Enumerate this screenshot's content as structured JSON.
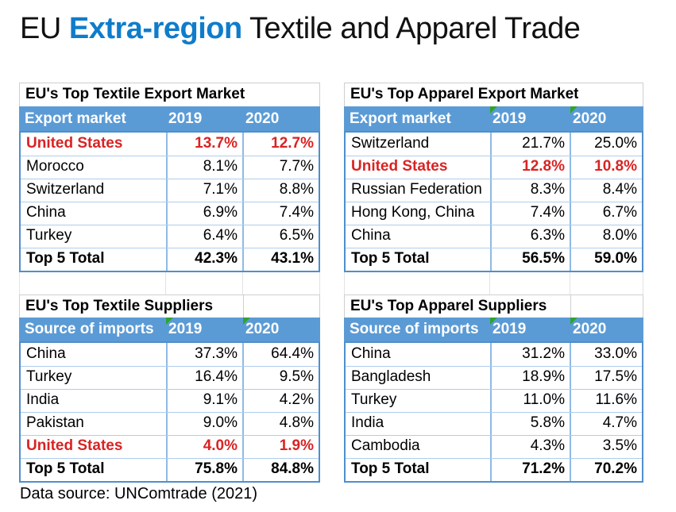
{
  "title": {
    "prefix": "EU ",
    "highlight": "Extra-region",
    "suffix": " Textile and Apparel Trade"
  },
  "footer": "Data source: UNComtrade (2021)",
  "colors": {
    "table_header_bg": "#5B9BD5",
    "table_header_text": "#FFFFFF",
    "highlight_red": "#D92323",
    "title_blue": "#0F7CCB",
    "flag_green": "#2EA42E",
    "grid_border_blue": "#8FBAE4",
    "outer_border_blue": "#4E8FCB",
    "faint_grid_gray": "#E3E3E3"
  },
  "chart_data": [
    {
      "type": "table",
      "title": "EU's Top Textile Export Market",
      "columns": [
        "Export market",
        "2019",
        "2020"
      ],
      "rows": [
        {
          "cells": [
            "United States",
            "13.7%",
            "12.7%"
          ],
          "style": "red"
        },
        {
          "cells": [
            "Morocco",
            "8.1%",
            "7.7%"
          ],
          "style": ""
        },
        {
          "cells": [
            "Switzerland",
            "7.1%",
            "8.8%"
          ],
          "style": ""
        },
        {
          "cells": [
            "China",
            "6.9%",
            "7.4%"
          ],
          "style": ""
        },
        {
          "cells": [
            "Turkey",
            "6.4%",
            "6.5%"
          ],
          "style": ""
        },
        {
          "cells": [
            "Top 5 Total",
            "42.3%",
            "43.1%"
          ],
          "style": "total"
        }
      ]
    },
    {
      "type": "table",
      "title": "EU's Top Apparel Export Market",
      "columns": [
        "Export market",
        "2019",
        "2020"
      ],
      "rows": [
        {
          "cells": [
            "Switzerland",
            "21.7%",
            "25.0%"
          ],
          "style": ""
        },
        {
          "cells": [
            "United States",
            "12.8%",
            "10.8%"
          ],
          "style": "red"
        },
        {
          "cells": [
            "Russian Federation",
            "8.3%",
            "8.4%"
          ],
          "style": ""
        },
        {
          "cells": [
            "Hong Kong, China",
            "7.4%",
            "6.7%"
          ],
          "style": ""
        },
        {
          "cells": [
            "China",
            "6.3%",
            "8.0%"
          ],
          "style": ""
        },
        {
          "cells": [
            "Top 5 Total",
            "56.5%",
            "59.0%"
          ],
          "style": "total"
        }
      ]
    },
    {
      "type": "table",
      "title": "EU's Top Textile Suppliers",
      "columns": [
        "Source of imports",
        "2019",
        "2020"
      ],
      "rows": [
        {
          "cells": [
            "China",
            "37.3%",
            "64.4%"
          ],
          "style": ""
        },
        {
          "cells": [
            "Turkey",
            "16.4%",
            "9.5%"
          ],
          "style": ""
        },
        {
          "cells": [
            "India",
            "9.1%",
            "4.2%"
          ],
          "style": ""
        },
        {
          "cells": [
            "Pakistan",
            "9.0%",
            "4.8%"
          ],
          "style": ""
        },
        {
          "cells": [
            "United States",
            "4.0%",
            "1.9%"
          ],
          "style": "red"
        },
        {
          "cells": [
            "Top 5 Total",
            "75.8%",
            "84.8%"
          ],
          "style": "total"
        }
      ]
    },
    {
      "type": "table",
      "title": "EU's Top Apparel Suppliers",
      "columns": [
        "Source of imports",
        "2019",
        "2020"
      ],
      "rows": [
        {
          "cells": [
            "China",
            "31.2%",
            "33.0%"
          ],
          "style": ""
        },
        {
          "cells": [
            "Bangladesh",
            "18.9%",
            "17.5%"
          ],
          "style": ""
        },
        {
          "cells": [
            "Turkey",
            "11.0%",
            "11.6%"
          ],
          "style": ""
        },
        {
          "cells": [
            "India",
            "5.8%",
            "4.7%"
          ],
          "style": ""
        },
        {
          "cells": [
            "Cambodia",
            "4.3%",
            "3.5%"
          ],
          "style": ""
        },
        {
          "cells": [
            "Top 5 Total",
            "71.2%",
            "70.2%"
          ],
          "style": "total"
        }
      ]
    }
  ]
}
